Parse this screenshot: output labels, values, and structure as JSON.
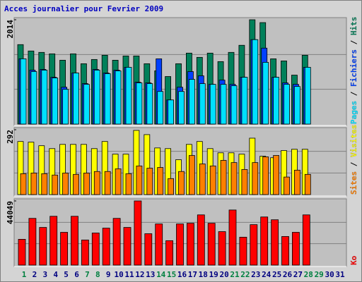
{
  "title": "Acces journalier pour Fevrier 2009",
  "legend_separator": "/",
  "x_axis": {
    "labels": [
      "1",
      "2",
      "3",
      "4",
      "5",
      "6",
      "7",
      "8",
      "9",
      "10",
      "11",
      "12",
      "13",
      "14",
      "15",
      "16",
      "17",
      "18",
      "19",
      "20",
      "21",
      "22",
      "23",
      "24",
      "25",
      "26",
      "27",
      "28",
      "29",
      "30",
      "31"
    ],
    "colors": [
      "#008040",
      "#000080",
      "#000080",
      "#000080",
      "#000080",
      "#000080",
      "#008040",
      "#008040",
      "#000080",
      "#000080",
      "#000080",
      "#000080",
      "#000080",
      "#008040",
      "#008040",
      "#000080",
      "#000080",
      "#000080",
      "#000080",
      "#000080",
      "#008040",
      "#008040",
      "#000080",
      "#000080",
      "#000080",
      "#000080",
      "#000080",
      "#008040",
      "#008040",
      "#000080",
      "#000080"
    ]
  },
  "chart_data": [
    {
      "type": "bar",
      "ylim": [
        0,
        2014
      ],
      "yticks": [
        2014
      ],
      "grid": true,
      "series": [
        {
          "name": "Hits",
          "color": "#00805a",
          "values": [
            1534,
            1411,
            1384,
            1356,
            1233,
            1356,
            1165,
            1247,
            1329,
            1233,
            1315,
            1315,
            1165,
            1028,
            918,
            1165,
            1370,
            1288,
            1370,
            1206,
            1384,
            1521,
            2014,
            1959,
            1260,
            1219,
            945,
            1329,
            null,
            null,
            null
          ]
        },
        {
          "name": "Fichiers",
          "color": "#0040ff",
          "values": [
            1260,
            1041,
            1055,
            904,
            712,
            986,
            781,
            1055,
            986,
            1041,
            1096,
            808,
            795,
            1260,
            466,
            712,
            1014,
            932,
            767,
            849,
            767,
            904,
            1630,
            1466,
            904,
            795,
            767,
            1096,
            null,
            null,
            null
          ]
        },
        {
          "name": "Pages",
          "color": "#00e0ff",
          "values": [
            1260,
            1014,
            1041,
            890,
            671,
            986,
            767,
            1041,
            973,
            1027,
            1096,
            795,
            781,
            630,
            466,
            630,
            863,
            781,
            767,
            767,
            740,
            904,
            1630,
            1192,
            904,
            767,
            726,
            1096,
            null,
            null,
            null
          ]
        }
      ]
    },
    {
      "type": "bar",
      "ylim": [
        0,
        292
      ],
      "yticks": [
        292
      ],
      "grid": true,
      "series": [
        {
          "name": "Visites",
          "color": "#ffff00",
          "values": [
            239,
            236,
            220,
            207,
            226,
            226,
            226,
            207,
            239,
            182,
            182,
            289,
            270,
            210,
            207,
            157,
            226,
            239,
            207,
            188,
            188,
            182,
            254,
            173,
            166,
            198,
            204,
            204,
            null,
            null,
            null
          ]
        },
        {
          "name": "Sites",
          "color": "#ff8000",
          "values": [
            94,
            97,
            94,
            88,
            97,
            91,
            97,
            104,
            104,
            116,
            94,
            129,
            119,
            122,
            72,
            104,
            176,
            138,
            129,
            154,
            144,
            113,
            144,
            170,
            176,
            79,
            110,
            91,
            null,
            null,
            null
          ]
        }
      ]
    },
    {
      "type": "bar",
      "ylim": [
        0,
        44049
      ],
      "yticks": [
        44049
      ],
      "grid": true,
      "series": [
        {
          "name": "Ko",
          "color": "#ff0000",
          "values": [
            17716,
            32080,
            25855,
            33516,
            22504,
            33516,
            17237,
            22025,
            25376,
            32080,
            25855,
            44049,
            21546,
            28249,
            16758,
            28249,
            28728,
            34474,
            28728,
            22982,
            37825,
            19152,
            27770,
            33037,
            31122,
            19631,
            22504,
            34474,
            null,
            null,
            null
          ]
        }
      ]
    }
  ]
}
